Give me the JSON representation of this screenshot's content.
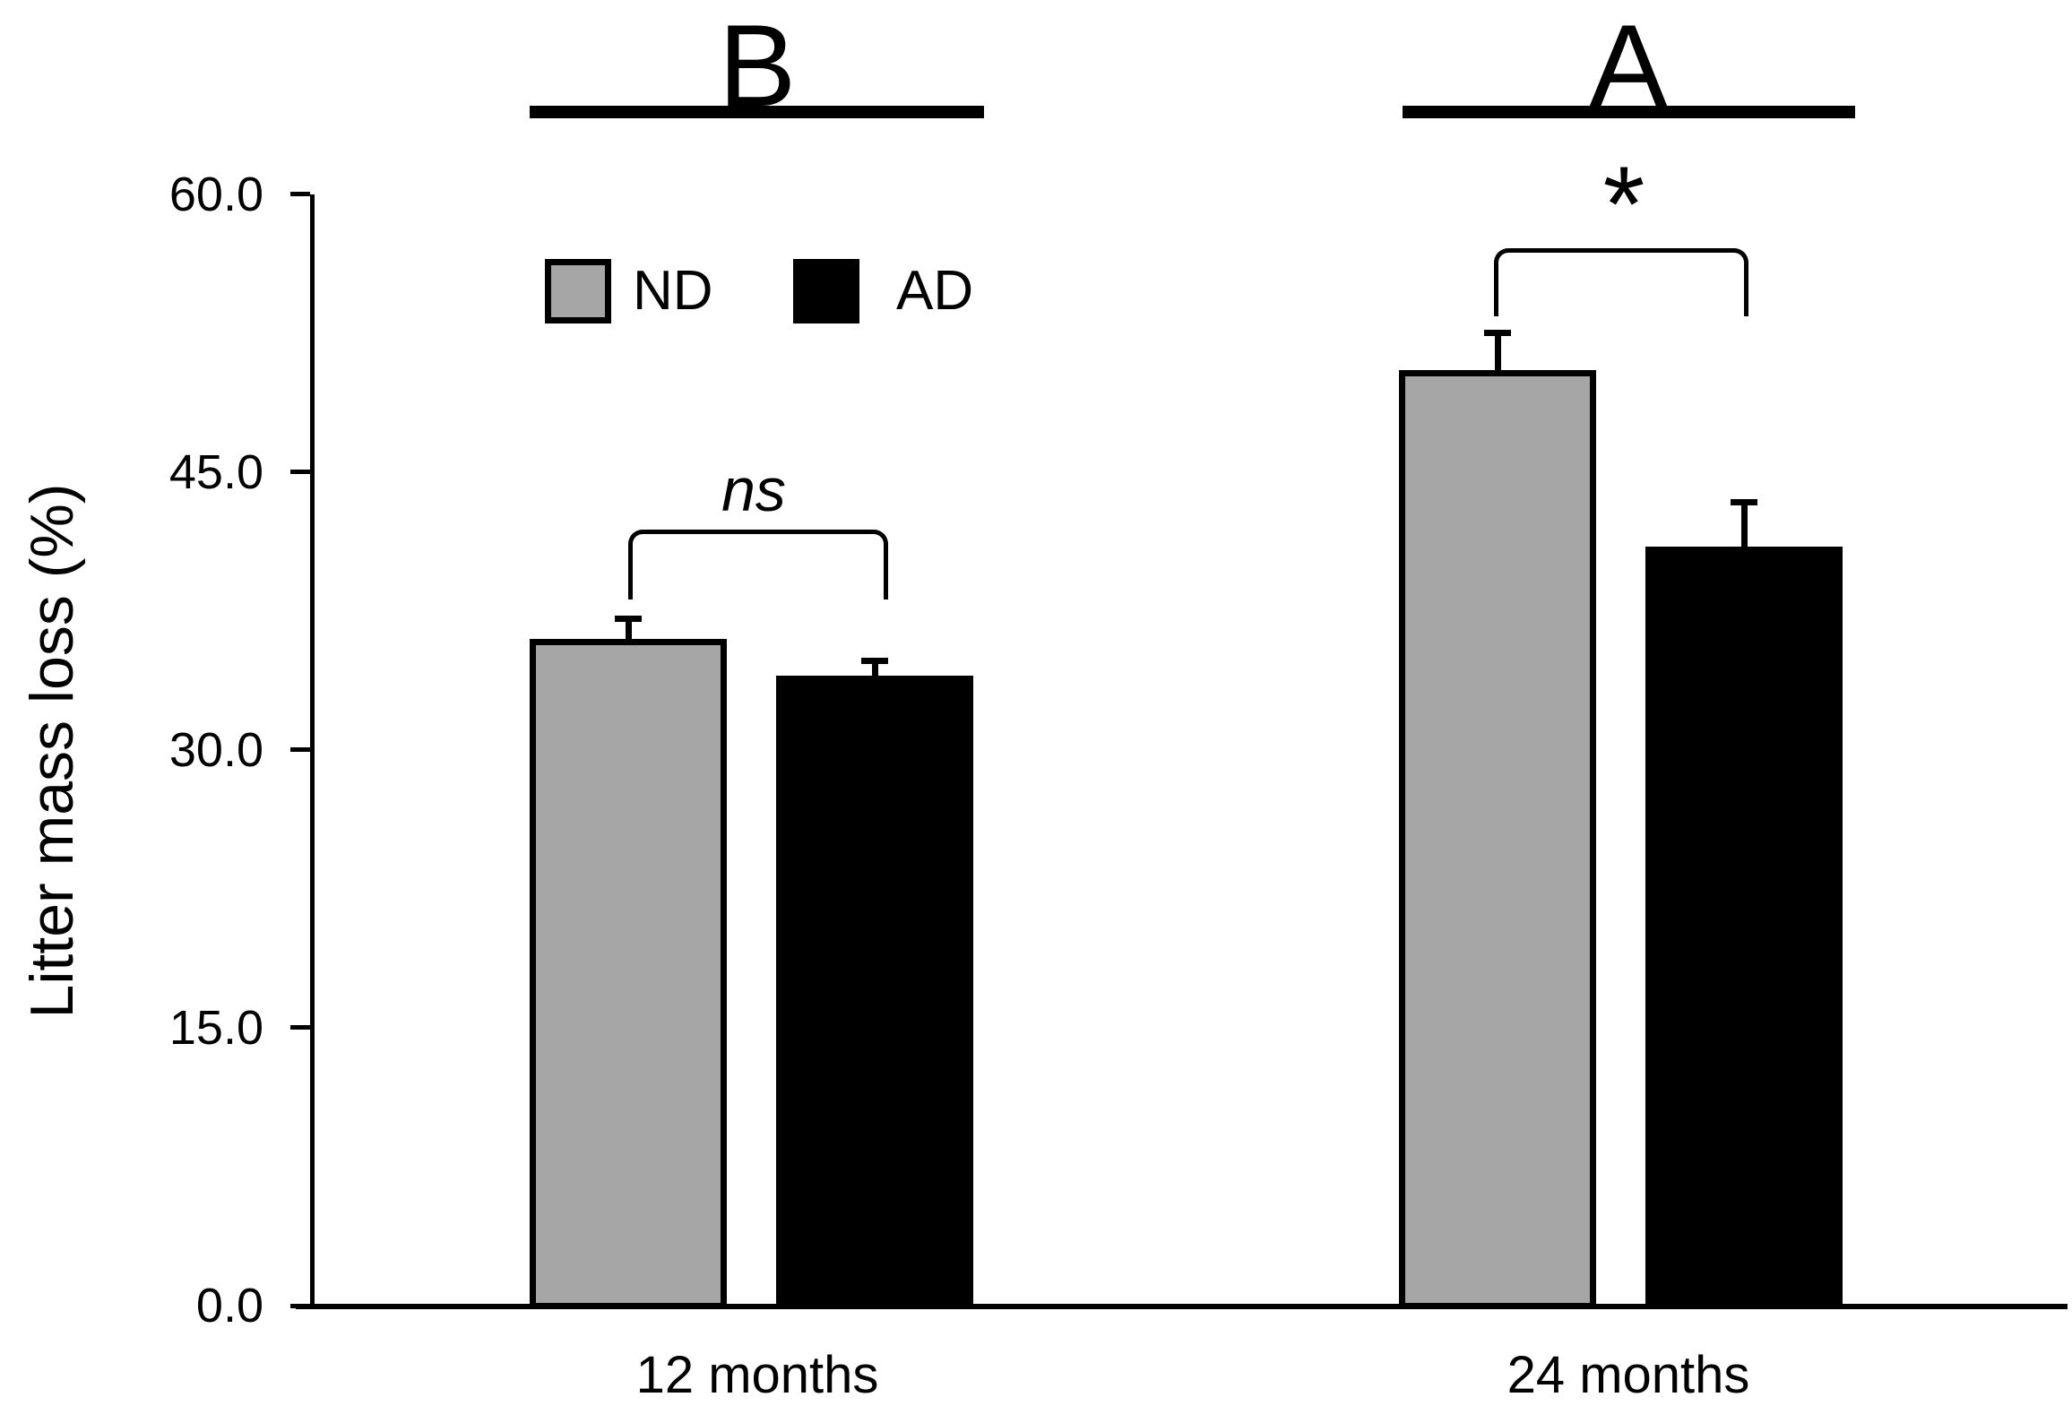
{
  "chart_data": {
    "type": "bar",
    "title": "",
    "xlabel": "",
    "ylabel": "Litter mass loss (%)",
    "ylim": [
      0,
      60
    ],
    "grid": false,
    "legend_position": "top-left-inside",
    "yticks": [
      {
        "value": 60,
        "label": "60.0"
      },
      {
        "value": 45,
        "label": "45.0"
      },
      {
        "value": 30,
        "label": "30.0"
      },
      {
        "value": 15,
        "label": "15.0"
      },
      {
        "value": 0,
        "label": "0.0"
      }
    ],
    "categories": [
      "12 months",
      "24 months"
    ],
    "series": [
      {
        "name": "ND",
        "color": "#a6a6a6",
        "values": [
          36.0,
          50.5
        ],
        "errors": [
          1.1,
          2.0
        ]
      },
      {
        "name": "AD",
        "color": "#000000",
        "values": [
          34.0,
          41.0
        ],
        "errors": [
          0.8,
          2.4
        ]
      }
    ],
    "legend": {
      "entries": [
        {
          "name": "ND",
          "color": "#a6a6a6"
        },
        {
          "name": "AD",
          "color": "#000000"
        }
      ]
    },
    "groups": [
      {
        "category": "12 months",
        "letter": "B",
        "significance": "ns"
      },
      {
        "category": "24 months",
        "letter": "A",
        "significance": "*"
      }
    ],
    "error_bars": "upper only, capped"
  },
  "colors": {
    "bar_nd_fill": "#a6a6a6",
    "bar_ad_fill": "#000000",
    "axis": "#000000",
    "background": "#ffffff"
  }
}
